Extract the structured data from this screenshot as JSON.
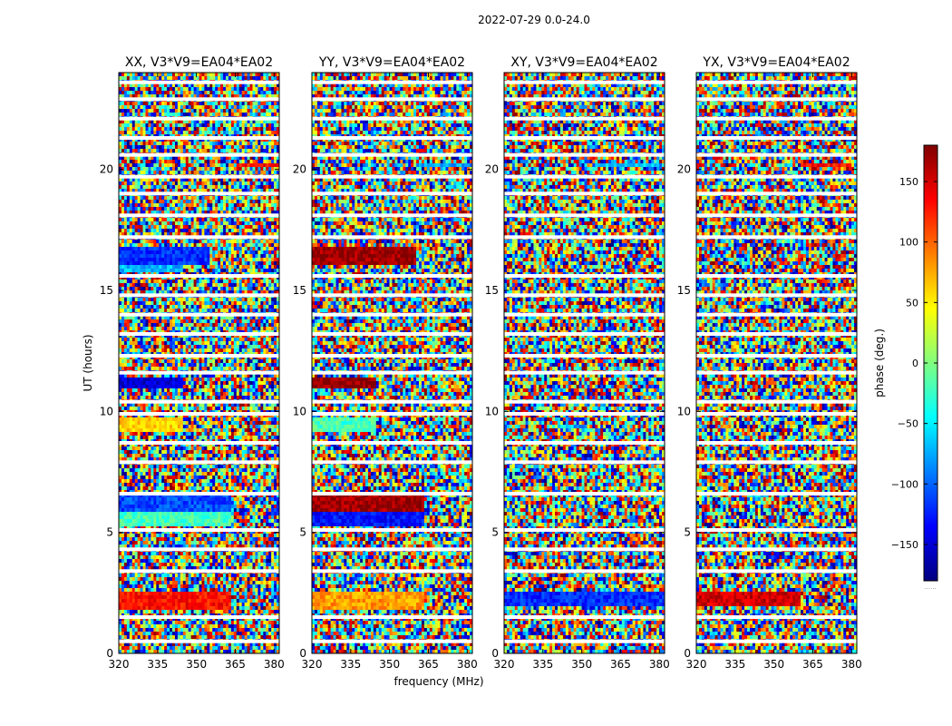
{
  "figure_title": "2022-07-29 0.0-24.0",
  "chart_data": {
    "type": "heatmap",
    "title": "2022-07-29 0.0-24.0",
    "xlabel": "frequency (MHz)",
    "ylabel": "UT (hours)",
    "xlim": [
      320,
      382
    ],
    "ylim": [
      0,
      24
    ],
    "x_ticks": [
      320,
      335,
      350,
      365,
      380
    ],
    "y_ticks": [
      0,
      5,
      10,
      15,
      20
    ],
    "panels": [
      {
        "title": "XX, V3*V9=EA04*EA02",
        "pol": "XX",
        "coherent_bands": [
          {
            "ut": [
              1.8,
              2.6
            ],
            "freq": [
              320,
              363
            ],
            "phase": 130
          },
          {
            "ut": [
              5.2,
              5.9
            ],
            "freq": [
              320,
              363
            ],
            "phase": -20
          },
          {
            "ut": [
              5.9,
              6.6
            ],
            "freq": [
              320,
              363
            ],
            "phase": -110
          },
          {
            "ut": [
              9.1,
              9.7
            ],
            "freq": [
              320,
              345
            ],
            "phase": 60
          },
          {
            "ut": [
              11.0,
              11.4
            ],
            "freq": [
              320,
              345
            ],
            "phase": -150
          },
          {
            "ut": [
              15.7,
              16.0
            ],
            "freq": [
              320,
              345
            ],
            "phase": -70
          },
          {
            "ut": [
              16.0,
              16.8
            ],
            "freq": [
              320,
              355
            ],
            "phase": -120
          },
          {
            "ut": [
              20.1,
              20.3
            ],
            "freq": [
              365,
              382
            ],
            "phase": 130
          }
        ]
      },
      {
        "title": "YY, V3*V9=EA04*EA02",
        "pol": "YY",
        "coherent_bands": [
          {
            "ut": [
              1.8,
              2.6
            ],
            "freq": [
              320,
              363
            ],
            "phase": 80
          },
          {
            "ut": [
              5.2,
              5.9
            ],
            "freq": [
              320,
              363
            ],
            "phase": -130
          },
          {
            "ut": [
              5.9,
              6.6
            ],
            "freq": [
              320,
              363
            ],
            "phase": 170
          },
          {
            "ut": [
              9.1,
              9.7
            ],
            "freq": [
              320,
              345
            ],
            "phase": -20
          },
          {
            "ut": [
              11.0,
              11.4
            ],
            "freq": [
              320,
              345
            ],
            "phase": 175
          },
          {
            "ut": [
              16.0,
              16.8
            ],
            "freq": [
              320,
              360
            ],
            "phase": 170
          },
          {
            "ut": [
              20.1,
              20.3
            ],
            "freq": [
              360,
              382
            ],
            "phase": -80
          }
        ]
      },
      {
        "title": "XY, V3*V9=EA04*EA02",
        "pol": "XY",
        "coherent_bands": [
          {
            "ut": [
              1.9,
              2.6
            ],
            "freq": [
              320,
              382
            ],
            "phase": -120
          },
          {
            "ut": [
              20.1,
              20.3
            ],
            "freq": [
              355,
              380
            ],
            "phase": -60
          }
        ]
      },
      {
        "title": "YX, V3*V9=EA04*EA02",
        "pol": "YX",
        "coherent_bands": [
          {
            "ut": [
              1.9,
              2.6
            ],
            "freq": [
              320,
              360
            ],
            "phase": 150
          },
          {
            "ut": [
              20.1,
              20.3
            ],
            "freq": [
              360,
              380
            ],
            "phase": 130
          }
        ]
      }
    ],
    "gap_rows_ut": [
      0.5,
      1.5,
      3.4,
      4.3,
      5.1,
      6.6,
      7.9,
      8.7,
      9.9,
      10.4,
      11.6,
      12.3,
      13.2,
      14.0,
      14.8,
      15.6,
      17.2,
      18.1,
      19.0,
      19.7,
      20.6,
      21.3,
      22.1,
      22.9,
      23.6
    ],
    "colorbar": {
      "label": "phase (deg.)",
      "range": [
        -180,
        180
      ],
      "ticks": [
        -150,
        -100,
        -50,
        0,
        50,
        100,
        150
      ],
      "tick_labels": [
        "−150",
        "−100",
        "−50",
        "0",
        "50",
        "100",
        "150"
      ],
      "footer": "......"
    }
  }
}
